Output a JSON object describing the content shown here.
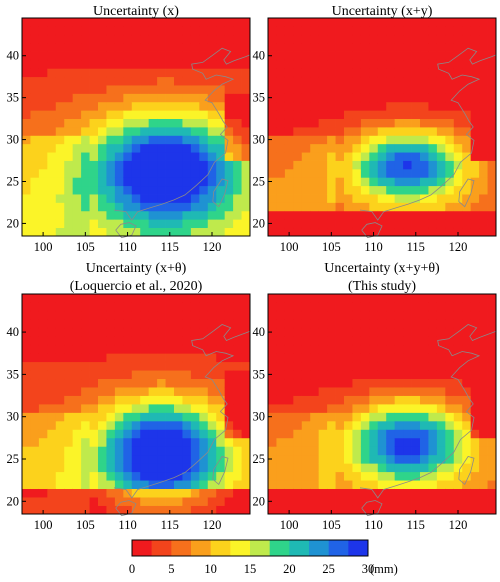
{
  "figure": {
    "colorbar": {
      "ticks": [
        "0",
        "5",
        "10",
        "15",
        "20",
        "25",
        "30"
      ],
      "unit": "(mm)",
      "range": [
        0,
        30
      ],
      "bins": 12,
      "colors": [
        "#f01a1e",
        "#f3441c",
        "#f6701c",
        "#fa9f1c",
        "#fcd21c",
        "#fbf428",
        "#bfea4c",
        "#2fd48a",
        "#1fb9b4",
        "#1f92d2",
        "#2063e6",
        "#1d35ea"
      ]
    },
    "coastline_color": "#8a8a8a"
  },
  "chart_data": [
    {
      "type": "heatmap",
      "title_lines": [
        "Uncertainty (x)"
      ],
      "xticks": [
        "100",
        "105",
        "110",
        "115",
        "120"
      ],
      "yticks": [
        "20",
        "25",
        "30",
        "35",
        "40"
      ],
      "xlim": [
        97.5,
        124.5
      ],
      "ylim": [
        18.5,
        44.5
      ],
      "field": {
        "base": 1.0,
        "slope": 4.5,
        "center": [
          114.5,
          26.5
        ],
        "radii": [
          8.5,
          6.3
        ],
        "peak": 26.5,
        "wedge": 1,
        "coast": 1,
        "south": 0
      }
    },
    {
      "type": "heatmap",
      "title_lines": [
        "Uncertainty (x+y)"
      ],
      "xticks": [
        "100",
        "105",
        "110",
        "115",
        "120"
      ],
      "yticks": [
        "20",
        "25",
        "30",
        "35",
        "40"
      ],
      "xlim": [
        97.5,
        124.5
      ],
      "ylim": [
        18.5,
        44.5
      ],
      "field": {
        "base": -3.5,
        "slope": 4.0,
        "center": [
          114.0,
          27.0
        ],
        "radii": [
          6.5,
          4.0
        ],
        "peak": 24.0,
        "wedge": 1,
        "coast": 1,
        "south": 1
      }
    },
    {
      "type": "heatmap",
      "title_lines": [
        "Uncertainty (x+θ)",
        "(Loquercio et al., 2020)"
      ],
      "xticks": [
        "100",
        "105",
        "110",
        "115",
        "120"
      ],
      "yticks": [
        "20",
        "25",
        "30",
        "35",
        "40"
      ],
      "xlim": [
        97.5,
        124.5
      ],
      "ylim": [
        18.5,
        44.5
      ],
      "field": {
        "base": 0.0,
        "slope": 4.3,
        "center": [
          114.0,
          26.0
        ],
        "radii": [
          7.0,
          5.5
        ],
        "peak": 27.5,
        "wedge": 1,
        "coast": 1,
        "south": 1
      }
    },
    {
      "type": "heatmap",
      "title_lines": [
        "Uncertainty (x+y+θ)",
        "(This study)"
      ],
      "xticks": [
        "100",
        "105",
        "110",
        "115",
        "120"
      ],
      "yticks": [
        "20",
        "25",
        "30",
        "35",
        "40"
      ],
      "xlim": [
        97.5,
        124.5
      ],
      "ylim": [
        18.5,
        44.5
      ],
      "field": {
        "base": -3.0,
        "slope": 4.0,
        "center": [
          114.0,
          27.0
        ],
        "radii": [
          6.8,
          4.5
        ],
        "peak": 24.5,
        "wedge": 1,
        "coast": 1,
        "south": 1
      }
    }
  ]
}
